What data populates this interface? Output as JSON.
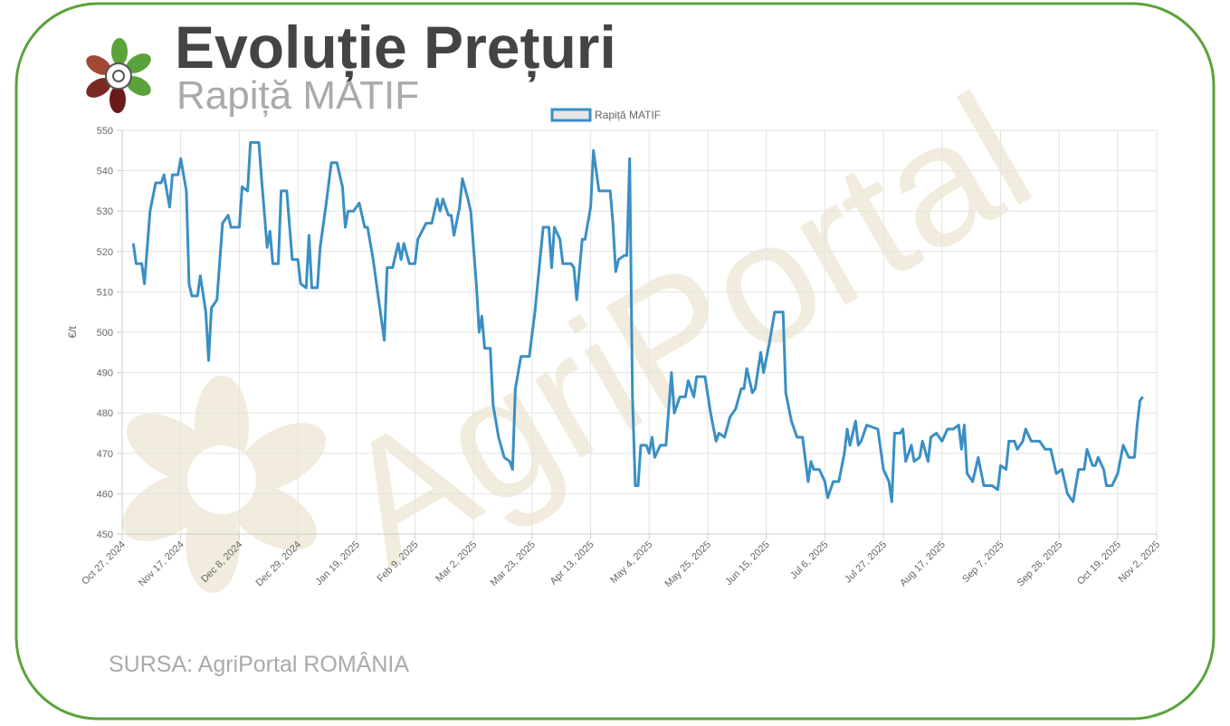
{
  "header": {
    "title": "Evoluție Prețuri",
    "subtitle": "Rapiță MATIF"
  },
  "watermark": "AgriPortal",
  "source": "SURSA: AgriPortal ROMÂNIA",
  "chart_data": {
    "type": "line",
    "y_label": "€/t",
    "grid": true,
    "legend": "top",
    "xlim": [
      "2024-10-27",
      "2025-11-02"
    ],
    "xticks": [
      {
        "value": "2024-10-27",
        "label": "Oct 27, 2024"
      },
      {
        "value": "2024-11-17",
        "label": "Nov 17, 2024"
      },
      {
        "value": "2024-12-08",
        "label": "Dec 8, 2024"
      },
      {
        "value": "2024-12-29",
        "label": "Dec 29, 2024"
      },
      {
        "value": "2025-01-19",
        "label": "Jan 19, 2025"
      },
      {
        "value": "2025-02-09",
        "label": "Feb 9, 2025"
      },
      {
        "value": "2025-03-02",
        "label": "Mar 2, 2025"
      },
      {
        "value": "2025-03-23",
        "label": "Mar 23, 2025"
      },
      {
        "value": "2025-04-13",
        "label": "Apr 13, 2025"
      },
      {
        "value": "2025-05-04",
        "label": "May 4, 2025"
      },
      {
        "value": "2025-05-25",
        "label": "May 25, 2025"
      },
      {
        "value": "2025-06-15",
        "label": "Jun 15, 2025"
      },
      {
        "value": "2025-07-06",
        "label": "Jul 6, 2025"
      },
      {
        "value": "2025-07-27",
        "label": "Jul 27, 2025"
      },
      {
        "value": "2025-08-17",
        "label": "Aug 17, 2025"
      },
      {
        "value": "2025-09-07",
        "label": "Sep 7, 2025"
      },
      {
        "value": "2025-09-28",
        "label": "Sep 28, 2025"
      },
      {
        "value": "2025-10-19",
        "label": "Oct 19, 2025"
      },
      {
        "value": "2025-11-02",
        "label": "Nov 2, 2025"
      }
    ],
    "ylim": [
      450,
      550
    ],
    "yticks": [
      450,
      460,
      470,
      480,
      490,
      500,
      510,
      520,
      530,
      540,
      550
    ],
    "x": [
      "2024-10-31",
      "2024-11-01",
      "2024-11-03",
      "2024-11-04",
      "2024-11-06",
      "2024-11-08",
      "2024-11-10",
      "2024-11-11",
      "2024-11-12",
      "2024-11-13",
      "2024-11-14",
      "2024-11-16",
      "2024-11-17",
      "2024-11-19",
      "2024-11-20",
      "2024-11-21",
      "2024-11-23",
      "2024-11-24",
      "2024-11-26",
      "2024-11-27",
      "2024-11-28",
      "2024-11-30",
      "2024-12-02",
      "2024-12-04",
      "2024-12-05",
      "2024-12-08",
      "2024-12-09",
      "2024-12-11",
      "2024-12-12",
      "2024-12-15",
      "2024-12-16",
      "2024-12-18",
      "2024-12-19",
      "2024-12-20",
      "2024-12-22",
      "2024-12-23",
      "2024-12-25",
      "2024-12-27",
      "2024-12-29",
      "2024-12-30",
      "2025-01-01",
      "2025-01-02",
      "2025-01-03",
      "2025-01-05",
      "2025-01-06",
      "2025-01-08",
      "2025-01-10",
      "2025-01-12",
      "2025-01-14",
      "2025-01-15",
      "2025-01-16",
      "2025-01-18",
      "2025-01-20",
      "2025-01-22",
      "2025-01-23",
      "2025-01-25",
      "2025-01-27",
      "2025-01-29",
      "2025-01-30",
      "2025-02-01",
      "2025-02-03",
      "2025-02-04",
      "2025-02-05",
      "2025-02-07",
      "2025-02-09",
      "2025-02-10",
      "2025-02-13",
      "2025-02-15",
      "2025-02-17",
      "2025-02-18",
      "2025-02-19",
      "2025-02-21",
      "2025-02-22",
      "2025-02-23",
      "2025-02-25",
      "2025-02-26",
      "2025-02-28",
      "2025-03-01",
      "2025-03-03",
      "2025-03-04",
      "2025-03-05",
      "2025-03-06",
      "2025-03-08",
      "2025-03-09",
      "2025-03-11",
      "2025-03-13",
      "2025-03-15",
      "2025-03-16",
      "2025-03-17",
      "2025-03-19",
      "2025-03-22",
      "2025-03-24",
      "2025-03-26",
      "2025-03-27",
      "2025-03-29",
      "2025-03-30",
      "2025-03-31",
      "2025-04-02",
      "2025-04-03",
      "2025-04-06",
      "2025-04-07",
      "2025-04-08",
      "2025-04-10",
      "2025-04-11",
      "2025-04-13",
      "2025-04-14",
      "2025-04-16",
      "2025-04-20",
      "2025-04-21",
      "2025-04-22",
      "2025-04-23",
      "2025-04-25",
      "2025-04-26",
      "2025-04-27",
      "2025-04-28",
      "2025-04-29",
      "2025-04-30",
      "2025-05-01",
      "2025-05-03",
      "2025-05-04",
      "2025-05-05",
      "2025-05-06",
      "2025-05-08",
      "2025-05-10",
      "2025-05-12",
      "2025-05-13",
      "2025-05-15",
      "2025-05-17",
      "2025-05-18",
      "2025-05-20",
      "2025-05-21",
      "2025-05-24",
      "2025-05-26",
      "2025-05-28",
      "2025-05-29",
      "2025-05-31",
      "2025-06-02",
      "2025-06-04",
      "2025-06-06",
      "2025-06-07",
      "2025-06-08",
      "2025-06-10",
      "2025-06-11",
      "2025-06-13",
      "2025-06-14",
      "2025-06-16",
      "2025-06-18",
      "2025-06-21",
      "2025-06-22",
      "2025-06-24",
      "2025-06-26",
      "2025-06-28",
      "2025-06-30",
      "2025-07-01",
      "2025-07-02",
      "2025-07-04",
      "2025-07-06",
      "2025-07-07",
      "2025-07-09",
      "2025-07-11",
      "2025-07-13",
      "2025-07-14",
      "2025-07-15",
      "2025-07-17",
      "2025-07-18",
      "2025-07-19",
      "2025-07-21",
      "2025-07-25",
      "2025-07-27",
      "2025-07-29",
      "2025-07-30",
      "2025-07-31",
      "2025-08-02",
      "2025-08-03",
      "2025-08-04",
      "2025-08-06",
      "2025-08-07",
      "2025-08-09",
      "2025-08-10",
      "2025-08-12",
      "2025-08-13",
      "2025-08-15",
      "2025-08-17",
      "2025-08-19",
      "2025-08-21",
      "2025-08-23",
      "2025-08-24",
      "2025-08-25",
      "2025-08-26",
      "2025-08-28",
      "2025-08-30",
      "2025-09-01",
      "2025-09-02",
      "2025-09-04",
      "2025-09-06",
      "2025-09-07",
      "2025-09-09",
      "2025-09-10",
      "2025-09-12",
      "2025-09-13",
      "2025-09-15",
      "2025-09-16",
      "2025-09-18",
      "2025-09-21",
      "2025-09-23",
      "2025-09-25",
      "2025-09-27",
      "2025-09-29",
      "2025-10-01",
      "2025-10-03",
      "2025-10-05",
      "2025-10-07",
      "2025-10-08",
      "2025-10-10",
      "2025-10-11",
      "2025-10-12",
      "2025-10-14",
      "2025-10-15",
      "2025-10-17",
      "2025-10-19",
      "2025-10-21",
      "2025-10-23",
      "2025-10-25",
      "2025-10-26",
      "2025-10-27",
      "2025-10-28"
    ],
    "series": [
      {
        "name": "Rapiță MATIF",
        "color": "#3a8fc4",
        "values": [
          522,
          517,
          517,
          512,
          530,
          537,
          537,
          539,
          535,
          531,
          539,
          539,
          543,
          535,
          512,
          509,
          509,
          514,
          505,
          493,
          506,
          508,
          527,
          529,
          526,
          526,
          536,
          535,
          547,
          547,
          538,
          521,
          525,
          517,
          517,
          535,
          535,
          518,
          518,
          512,
          511,
          524,
          511,
          511,
          521,
          531,
          542,
          542,
          536,
          526,
          530,
          530,
          532,
          526,
          526,
          518,
          508,
          498,
          516,
          516,
          522,
          518,
          522,
          517,
          517,
          523,
          527,
          527,
          533,
          530,
          533,
          529,
          529,
          524,
          531,
          538,
          533,
          530,
          512,
          500,
          504,
          496,
          496,
          482,
          474,
          469,
          468,
          466,
          486,
          494,
          494,
          505,
          519,
          526,
          526,
          516,
          526,
          523,
          517,
          517,
          516,
          508,
          523,
          523,
          531,
          545,
          535,
          535,
          527,
          515,
          518,
          519,
          519,
          543,
          484,
          462,
          462,
          472,
          472,
          470,
          474,
          469,
          472,
          472,
          490,
          480,
          484,
          484,
          488,
          484,
          489,
          489,
          480,
          473,
          475,
          474,
          479,
          481,
          486,
          486,
          491,
          485,
          486,
          495,
          490,
          497,
          505,
          505,
          485,
          478,
          474,
          474,
          463,
          468,
          466,
          466,
          463,
          459,
          463,
          463,
          470,
          476,
          472,
          478,
          472,
          473,
          477,
          476,
          466,
          463,
          458,
          475,
          475,
          476,
          468,
          472,
          468,
          469,
          473,
          468,
          474,
          475,
          473,
          476,
          476,
          477,
          471,
          477,
          465,
          463,
          469,
          462,
          462,
          462,
          461,
          467,
          466,
          473,
          473,
          471,
          473,
          476,
          473,
          473,
          471,
          471,
          465,
          466,
          460,
          458,
          466,
          466,
          471,
          467,
          467,
          469,
          466,
          462,
          462,
          465,
          472,
          469,
          469,
          477,
          483,
          484
        ]
      }
    ]
  }
}
